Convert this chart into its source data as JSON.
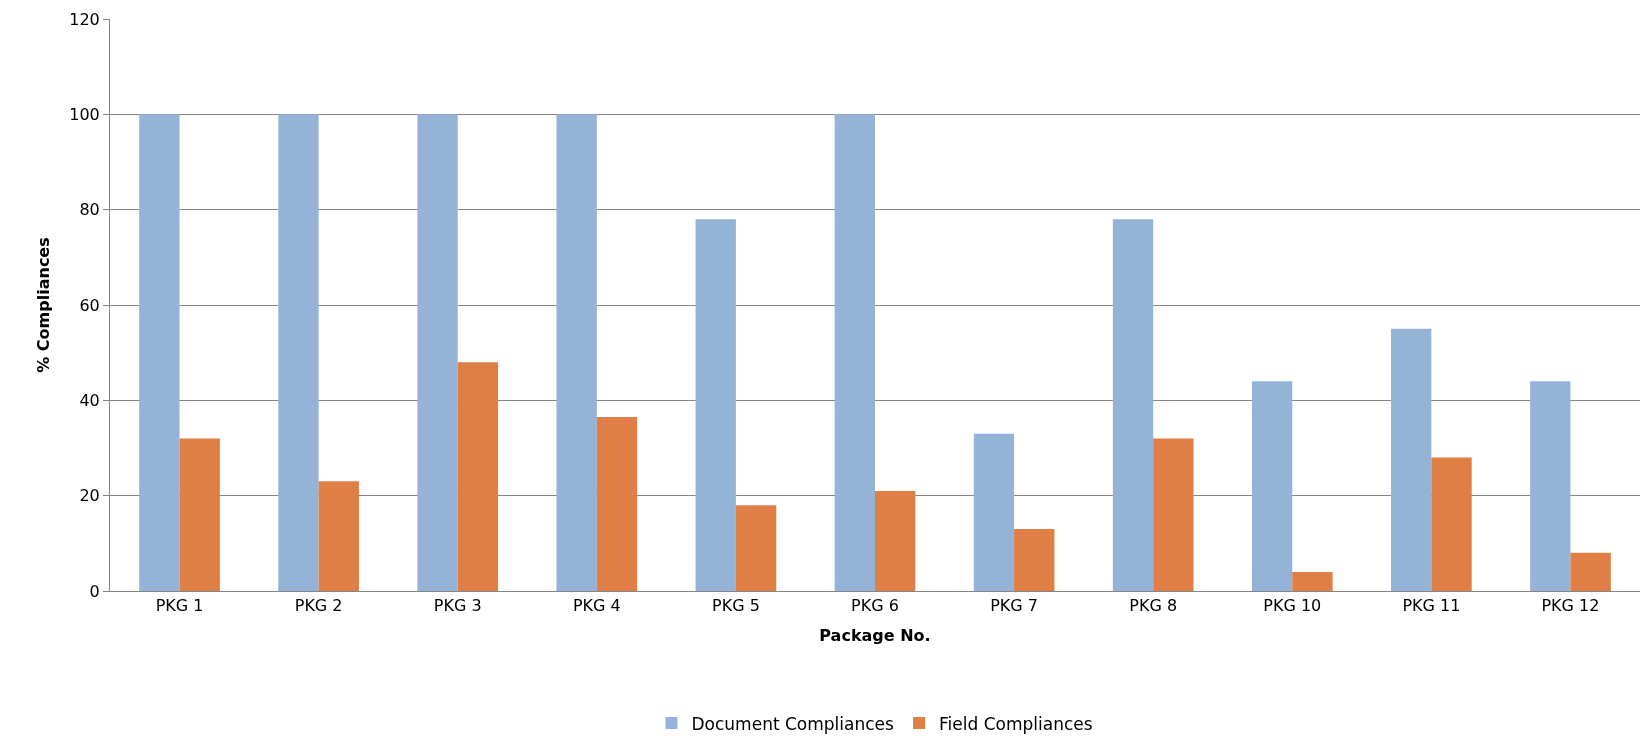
{
  "chart_data": {
    "type": "bar",
    "xlabel": "Package No.",
    "ylabel": "% Compliances",
    "categories": [
      "PKG 1",
      "PKG 2",
      "PKG 3",
      "PKG 4",
      "PKG 5",
      "PKG 6",
      "PKG 7",
      "PKG 8",
      "PKG 10",
      "PKG 11",
      "PKG 12"
    ],
    "series": [
      {
        "name": "Document Compliances",
        "color": "#95b3d7",
        "values": [
          100,
          100,
          100,
          100,
          78,
          100,
          33,
          78,
          44,
          55,
          44
        ]
      },
      {
        "name": "Field Compliances",
        "color": "#e07f45",
        "values": [
          32,
          23,
          48,
          36.5,
          18,
          21,
          13,
          32,
          4,
          28,
          8
        ]
      }
    ],
    "ylim": [
      0,
      120
    ],
    "yticks": [
      0,
      20,
      40,
      60,
      80,
      100,
      120
    ],
    "grid": "y",
    "legend": "bottom"
  }
}
